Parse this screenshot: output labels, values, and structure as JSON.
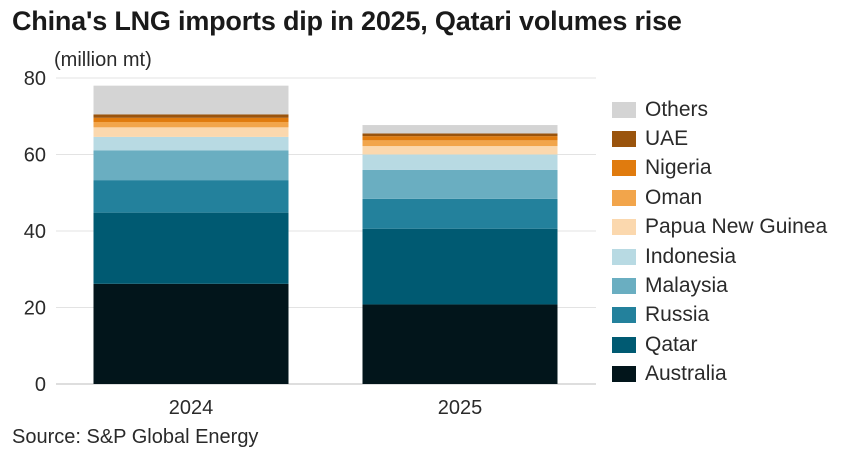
{
  "title": "China's LNG imports dip in 2025, Qatari volumes rise",
  "unit_label": "(million mt)",
  "source": "Source: S&P Global Energy",
  "chart_data": {
    "type": "bar",
    "stacked": true,
    "categories": [
      "2024",
      "2025"
    ],
    "ylim": [
      0,
      80
    ],
    "yticks": [
      0,
      20,
      40,
      60,
      80
    ],
    "grid": true,
    "legend_position": "right",
    "series": [
      {
        "name": "Australia",
        "color": "#02151b",
        "values": [
          26.2,
          20.8
        ]
      },
      {
        "name": "Qatar",
        "color": "#005a72",
        "values": [
          18.6,
          19.8
        ]
      },
      {
        "name": "Russia",
        "color": "#23819c",
        "values": [
          8.5,
          7.8
        ]
      },
      {
        "name": "Malaysia",
        "color": "#6aaec1",
        "values": [
          7.8,
          7.6
        ]
      },
      {
        "name": "Indonesia",
        "color": "#b8dae3",
        "values": [
          3.5,
          4.0
        ]
      },
      {
        "name": "Papua New Guinea",
        "color": "#fbd8ae",
        "values": [
          2.5,
          2.2
        ]
      },
      {
        "name": "Oman",
        "color": "#f2a54b",
        "values": [
          1.4,
          1.5
        ]
      },
      {
        "name": "Nigeria",
        "color": "#e07b0e",
        "values": [
          1.1,
          1.1
        ]
      },
      {
        "name": "UAE",
        "color": "#9a540d",
        "values": [
          0.9,
          0.7
        ]
      },
      {
        "name": "Others",
        "color": "#d4d4d4",
        "values": [
          7.5,
          2.2
        ]
      }
    ]
  }
}
